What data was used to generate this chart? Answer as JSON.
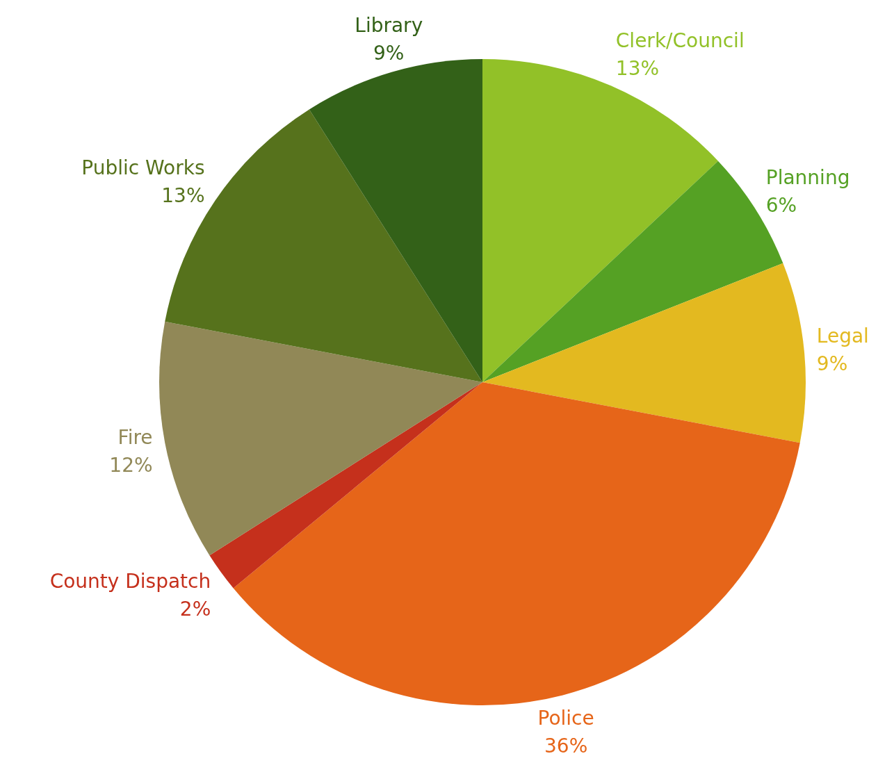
{
  "chart_data": {
    "type": "pie",
    "categories": [
      "Clerk/Council",
      "Planning",
      "Legal",
      "Police",
      "County Dispatch",
      "Fire",
      "Public Works",
      "Library"
    ],
    "values": [
      13,
      6,
      9,
      36,
      2,
      12,
      13,
      9
    ],
    "value_labels": [
      "13%",
      "6%",
      "9%",
      "36%",
      "2%",
      "12%",
      "13%",
      "9%"
    ],
    "colors": [
      "#92c128",
      "#55a124",
      "#e3b920",
      "#e66519",
      "#c5301c",
      "#918857",
      "#56721c",
      "#336118"
    ]
  }
}
